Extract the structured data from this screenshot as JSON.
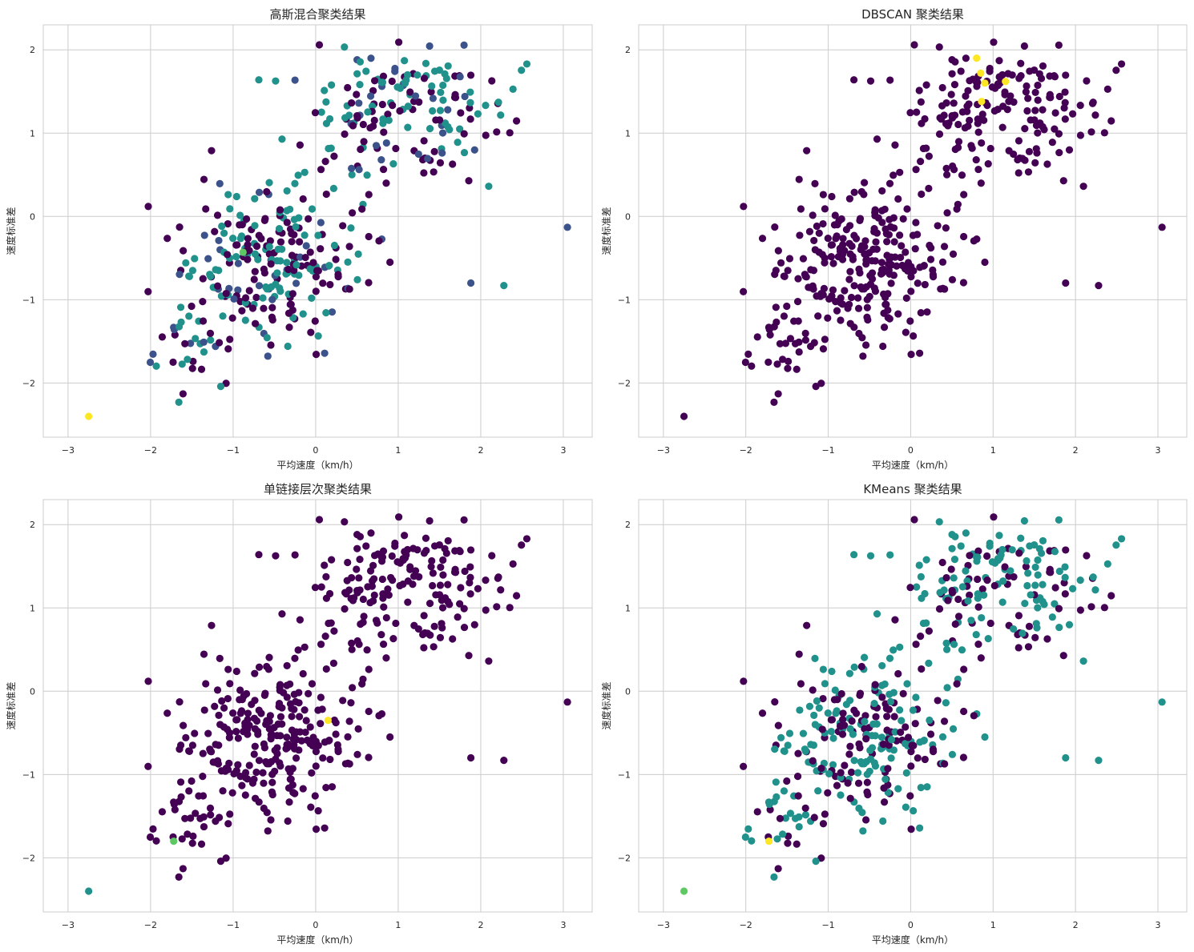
{
  "palette": {
    "grid": "#cccccc",
    "spine": "#cccccc",
    "text": "#262626",
    "viridis_5": [
      "#440154",
      "#3b528b",
      "#21918c",
      "#5ec962",
      "#fde725"
    ]
  },
  "chart_data": [
    {
      "type": "scatter",
      "title": "高斯混合聚类结果",
      "xlabel": "平均速度（km/h）",
      "ylabel": "速度标准差",
      "xlim": [
        -3.3,
        3.35
      ],
      "ylim": [
        -2.65,
        2.3
      ],
      "xticks": [
        -3,
        -2,
        -1,
        0,
        1,
        2,
        3
      ],
      "yticks": [
        -2,
        -1,
        0,
        1,
        2
      ],
      "xtick_labels": [
        "−3",
        "−2",
        "−1",
        "0",
        "1",
        "2",
        "3"
      ],
      "ytick_labels": [
        "−2",
        "−1",
        "0",
        "1",
        "2"
      ],
      "grid": true,
      "colormap": "viridis",
      "seed": 1,
      "mix": [
        0.42,
        0.12,
        0.46,
        0.0,
        0.0
      ],
      "special": [
        {
          "x": -2.75,
          "y": -2.4,
          "cluster": 4
        },
        {
          "x": -0.88,
          "y": -0.43,
          "cluster": 3
        },
        {
          "x": 3.05,
          "y": -0.13,
          "cluster": 1
        },
        {
          "x": 2.28,
          "y": -0.83,
          "cluster": 2
        },
        {
          "x": 1.88,
          "y": -0.8,
          "cluster": 1
        }
      ]
    },
    {
      "type": "scatter",
      "title": "DBSCAN 聚类结果",
      "xlabel": "平均速度（km/h）",
      "ylabel": "速度标准差",
      "xlim": [
        -3.3,
        3.35
      ],
      "ylim": [
        -2.65,
        2.3
      ],
      "xticks": [
        -3,
        -2,
        -1,
        0,
        1,
        2,
        3
      ],
      "yticks": [
        -2,
        -1,
        0,
        1,
        2
      ],
      "xtick_labels": [
        "−3",
        "−2",
        "−1",
        "0",
        "1",
        "2",
        "3"
      ],
      "ytick_labels": [
        "−2",
        "−1",
        "0",
        "1",
        "2"
      ],
      "grid": true,
      "colormap": "viridis",
      "seed": 1,
      "mix": [
        1.0,
        0.0,
        0.0,
        0.0,
        0.0
      ],
      "special": [
        {
          "x": -2.75,
          "y": -2.4,
          "cluster": 0
        },
        {
          "x": 3.05,
          "y": -0.13,
          "cluster": 0
        },
        {
          "x": 2.28,
          "y": -0.83,
          "cluster": 0
        },
        {
          "x": 1.88,
          "y": -0.8,
          "cluster": 0
        },
        {
          "x": 0.8,
          "y": 1.9,
          "cluster": 4
        },
        {
          "x": 0.85,
          "y": 1.72,
          "cluster": 4
        },
        {
          "x": 0.9,
          "y": 1.6,
          "cluster": 4
        },
        {
          "x": 1.15,
          "y": 1.62,
          "cluster": 4
        },
        {
          "x": 0.86,
          "y": 1.38,
          "cluster": 4
        }
      ]
    },
    {
      "type": "scatter",
      "title": "单链接层次聚类结果",
      "xlabel": "平均速度（km/h）",
      "ylabel": "速度标准差",
      "xlim": [
        -3.3,
        3.35
      ],
      "ylim": [
        -2.65,
        2.3
      ],
      "xticks": [
        -3,
        -2,
        -1,
        0,
        1,
        2,
        3
      ],
      "yticks": [
        -2,
        -1,
        0,
        1,
        2
      ],
      "xtick_labels": [
        "−3",
        "−2",
        "−1",
        "0",
        "1",
        "2",
        "3"
      ],
      "ytick_labels": [
        "−2",
        "−1",
        "0",
        "1",
        "2"
      ],
      "grid": true,
      "colormap": "viridis",
      "seed": 1,
      "mix": [
        1.0,
        0.0,
        0.0,
        0.0,
        0.0
      ],
      "special": [
        {
          "x": -2.75,
          "y": -2.4,
          "cluster": 2
        },
        {
          "x": -1.72,
          "y": -1.8,
          "cluster": 3
        },
        {
          "x": 0.15,
          "y": -0.35,
          "cluster": 4
        },
        {
          "x": 3.05,
          "y": -0.13,
          "cluster": 0
        },
        {
          "x": 2.28,
          "y": -0.83,
          "cluster": 0
        },
        {
          "x": 1.88,
          "y": -0.8,
          "cluster": 0
        }
      ]
    },
    {
      "type": "scatter",
      "title": "KMeans 聚类结果",
      "xlabel": "平均速度（km/h）",
      "ylabel": "速度标准差",
      "xlim": [
        -3.3,
        3.35
      ],
      "ylim": [
        -2.65,
        2.3
      ],
      "xticks": [
        -3,
        -2,
        -1,
        0,
        1,
        2,
        3
      ],
      "yticks": [
        -2,
        -1,
        0,
        1,
        2
      ],
      "xtick_labels": [
        "−3",
        "−2",
        "−1",
        "0",
        "1",
        "2",
        "3"
      ],
      "ytick_labels": [
        "−2",
        "−1",
        "0",
        "1",
        "2"
      ],
      "grid": true,
      "colormap": "viridis",
      "seed": 1,
      "mix": [
        0.4,
        0.0,
        0.6,
        0.0,
        0.0
      ],
      "special": [
        {
          "x": -2.75,
          "y": -2.4,
          "cluster": 3
        },
        {
          "x": -1.72,
          "y": -1.8,
          "cluster": 4
        },
        {
          "x": 3.05,
          "y": -0.13,
          "cluster": 2
        },
        {
          "x": 2.28,
          "y": -0.83,
          "cluster": 2
        },
        {
          "x": 1.88,
          "y": -0.8,
          "cluster": 2
        }
      ]
    }
  ],
  "base_points": {
    "count_main": 470,
    "clusters": [
      {
        "cx": -0.55,
        "cy": -0.55,
        "sx": 0.55,
        "sy": 0.45,
        "w": 0.55
      },
      {
        "cx": 1.05,
        "cy": 1.25,
        "sx": 0.65,
        "sy": 0.45,
        "w": 0.38
      },
      {
        "cx": -1.55,
        "cy": -1.6,
        "sx": 0.25,
        "sy": 0.35,
        "w": 0.07
      }
    ]
  }
}
